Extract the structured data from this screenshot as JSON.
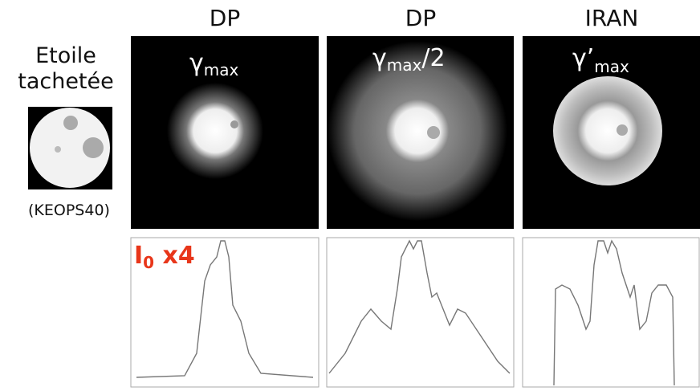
{
  "left": {
    "title_line1": "Etoile",
    "title_line2": "tachetée",
    "label": "(KEOPS40)"
  },
  "columns": [
    {
      "header": "DP",
      "symbol": "γ",
      "sub": "max"
    },
    {
      "header": "DP",
      "symbol": "γ",
      "sub": "max",
      "suffix": "/2"
    },
    {
      "header": "IRAN",
      "symbol": "γ’",
      "sub": "max"
    }
  ],
  "annotation": {
    "text": "I",
    "sub": "0",
    "suffix": " x4"
  }
}
